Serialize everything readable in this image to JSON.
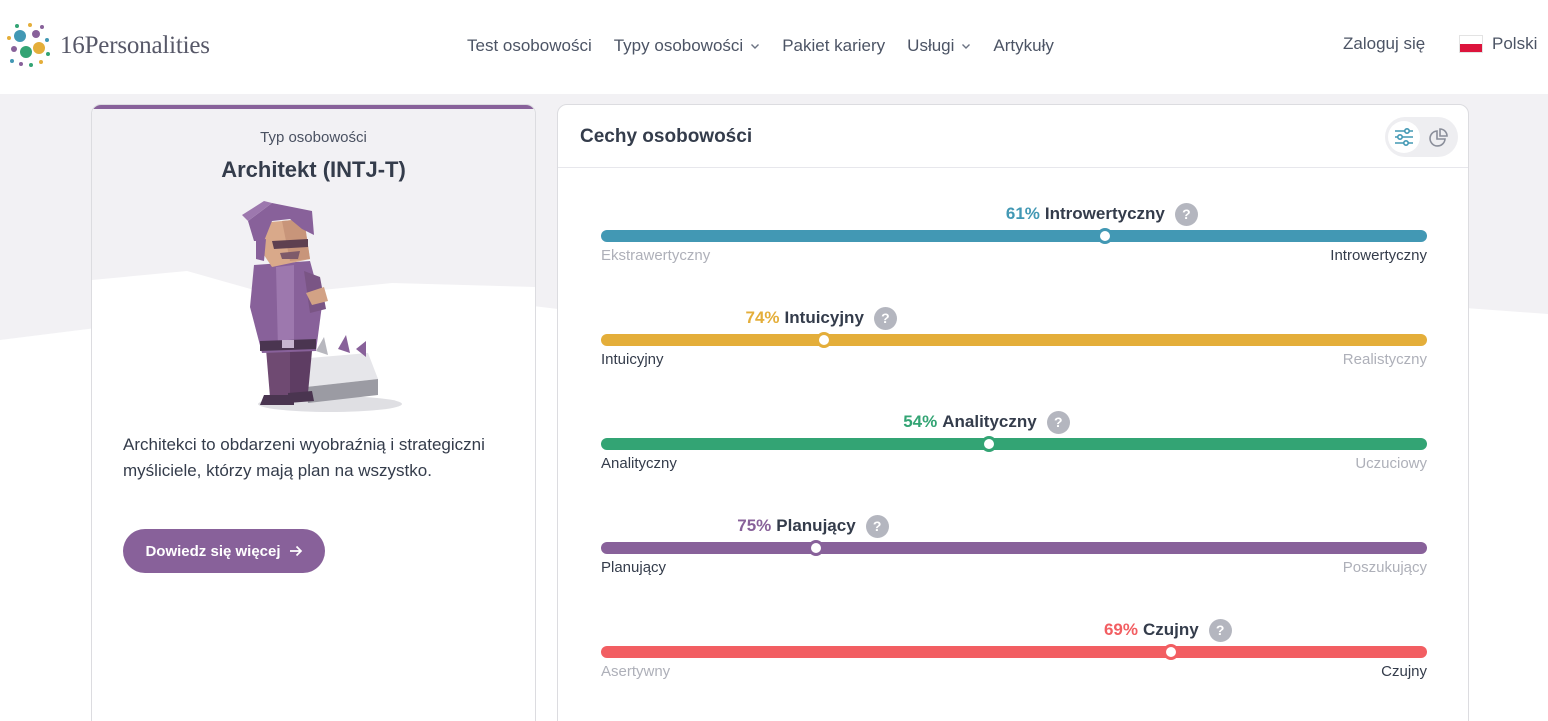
{
  "header": {
    "brand": "16Personalities",
    "nav": [
      {
        "label": "Test osobowości",
        "has_dropdown": false
      },
      {
        "label": "Typy osobowości",
        "has_dropdown": true
      },
      {
        "label": "Pakiet kariery",
        "has_dropdown": false
      },
      {
        "label": "Usługi",
        "has_dropdown": true
      },
      {
        "label": "Artykuły",
        "has_dropdown": false
      }
    ],
    "login": "Zaloguj się",
    "language": "Polski"
  },
  "type_card": {
    "kicker": "Typ osobowości",
    "title": "Architekt (INTJ-T)",
    "description": "Architekci to obdarzeni wyobraźnią i strategiczni myśliciele, którzy mają plan na wszystko.",
    "button": "Dowiedz się więcej",
    "accent": "#88619a"
  },
  "traits_card": {
    "title": "Cechy osobowości",
    "traits": [
      {
        "percent": "61%",
        "name": "Introwertyczny",
        "left": "Ekstrawertyczny",
        "right": "Introwertyczny",
        "position": 0.61,
        "dominant_side": "right",
        "color": "#4298b4"
      },
      {
        "percent": "74%",
        "name": "Intuicyjny",
        "left": "Intuicyjny",
        "right": "Realistyczny",
        "position": 0.27,
        "dominant_side": "left",
        "color": "#e4ae3a"
      },
      {
        "percent": "54%",
        "name": "Analityczny",
        "left": "Analityczny",
        "right": "Uczuciowy",
        "position": 0.47,
        "dominant_side": "left",
        "color": "#33a474"
      },
      {
        "percent": "75%",
        "name": "Planujący",
        "left": "Planujący",
        "right": "Poszukujący",
        "position": 0.26,
        "dominant_side": "left",
        "color": "#88619a"
      },
      {
        "percent": "69%",
        "name": "Czujny",
        "left": "Asertywny",
        "right": "Czujny",
        "position": 0.69,
        "dominant_side": "right",
        "color": "#f25e62"
      }
    ]
  }
}
